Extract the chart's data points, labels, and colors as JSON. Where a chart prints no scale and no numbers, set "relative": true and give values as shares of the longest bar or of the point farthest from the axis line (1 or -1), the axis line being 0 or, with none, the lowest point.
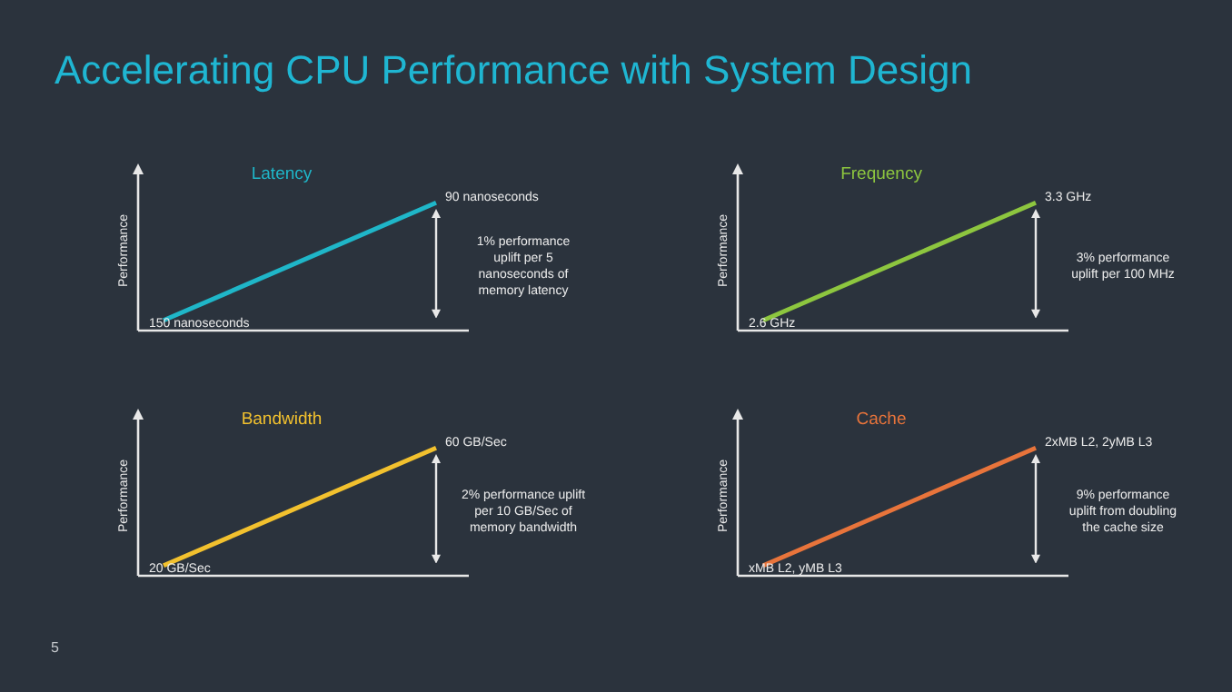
{
  "chart_data": [
    {
      "type": "other",
      "title": "Accelerating CPU Performance with System Design",
      "annotations": [
        "5"
      ]
    },
    {
      "type": "line",
      "title": "Latency",
      "ylabel": "Performance",
      "categories": [
        null,
        null
      ],
      "relative": true,
      "legend": false,
      "marker": "none",
      "series": [
        {
          "color": "#1fb6c8",
          "values": [
            0.08,
            1
          ]
        }
      ],
      "annotations": [
        "150 nanoseconds",
        "90 nanoseconds",
        "1% performance\nuplift per 5\nnanoseconds of\nmemory latency"
      ]
    },
    {
      "type": "line",
      "title": "Frequency",
      "ylabel": "Performance",
      "categories": [
        null,
        null
      ],
      "relative": true,
      "legend": false,
      "marker": "none",
      "series": [
        {
          "color": "#8dc63f",
          "values": [
            0.08,
            1
          ]
        }
      ],
      "annotations": [
        "2.6 GHz",
        "3.3 GHz",
        "3% performance\nuplift per 100 MHz"
      ]
    },
    {
      "type": "line",
      "title": "Bandwidth",
      "ylabel": "Performance",
      "categories": [
        null,
        null
      ],
      "relative": true,
      "legend": false,
      "marker": "none",
      "series": [
        {
          "color": "#f2c12e",
          "values": [
            0.08,
            1
          ]
        }
      ],
      "annotations": [
        "20 GB/Sec",
        "60 GB/Sec",
        "2% performance uplift\nper 10 GB/Sec of\nmemory bandwidth"
      ]
    },
    {
      "type": "line",
      "title": "Cache",
      "ylabel": "Performance",
      "categories": [
        null,
        null
      ],
      "relative": true,
      "legend": false,
      "marker": "none",
      "series": [
        {
          "color": "#e8743b",
          "values": [
            0.08,
            1
          ]
        }
      ],
      "annotations": [
        "xMB L2, yMB L3",
        "2xMB L2, 2yMB L3",
        "9% performance\nuplift from doubling\nthe cache size"
      ]
    }
  ]
}
